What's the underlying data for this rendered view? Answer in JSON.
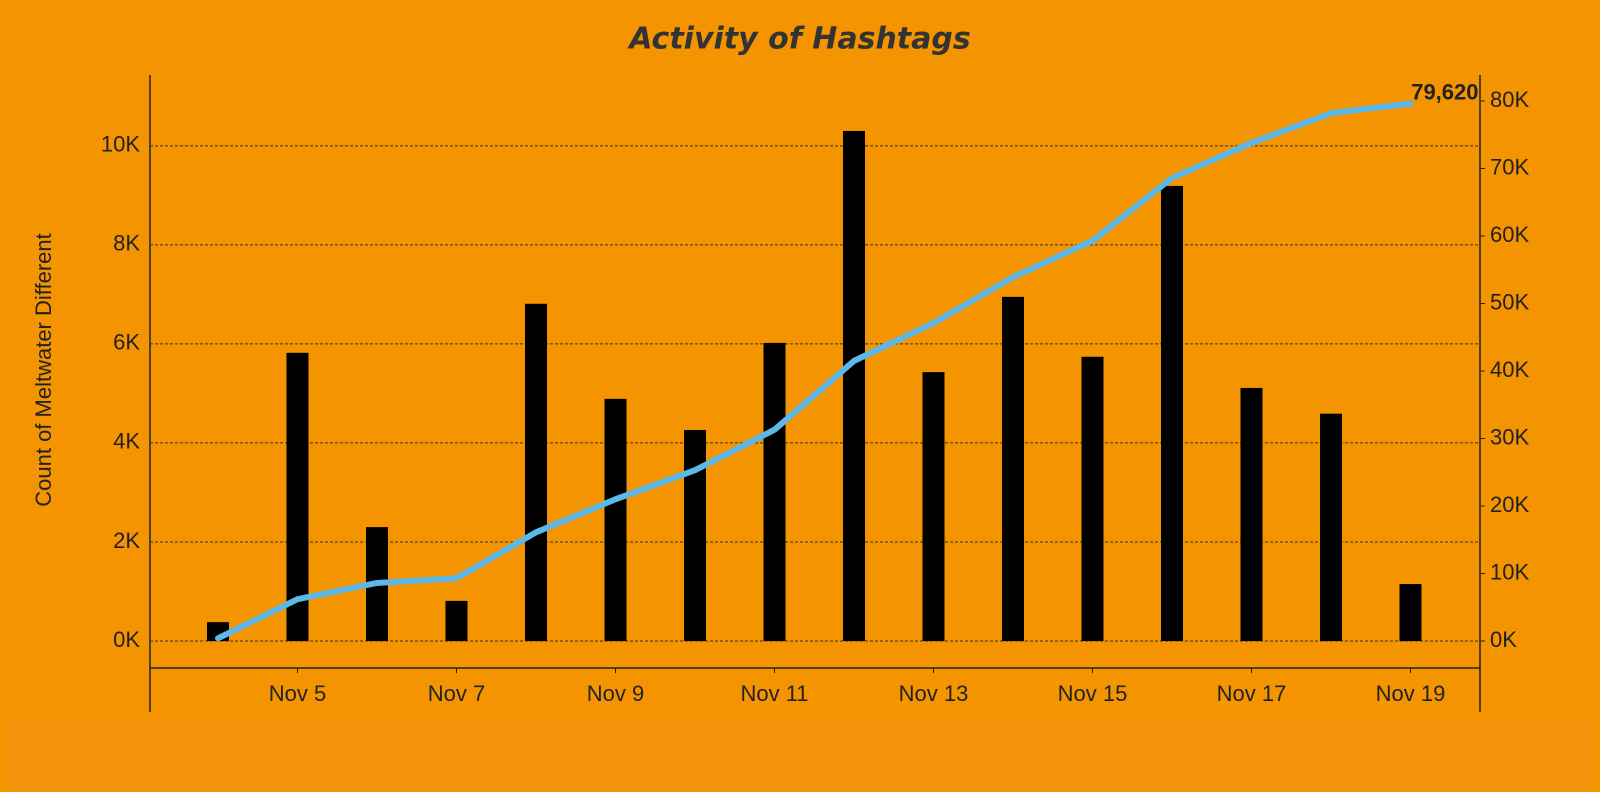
{
  "chart_data": {
    "type": "bar-line",
    "title": "Activity of Hashtags",
    "y_label": "Count of Meltwater Different",
    "categories": [
      null,
      "Nov 5",
      null,
      "Nov 7",
      null,
      "Nov 9",
      null,
      "Nov 11",
      null,
      "Nov 13",
      null,
      "Nov 15",
      null,
      "Nov 17",
      null,
      "Nov 19"
    ],
    "series": [
      {
        "type": "bar",
        "color": "#000000",
        "axis": "y",
        "values": [
          380,
          5820,
          2300,
          810,
          6810,
          4890,
          4260,
          6020,
          10300,
          5430,
          6950,
          5740,
          9190,
          5110,
          4590,
          1150
        ]
      },
      {
        "type": "line",
        "color": "#5bb8e8",
        "axis": "y2",
        "values": [
          400,
          6200,
          8600,
          9300,
          16100,
          21000,
          25300,
          31300,
          41500,
          47100,
          53900,
          59300,
          68600,
          73800,
          78200,
          79620
        ],
        "value_labels": [
          null,
          null,
          null,
          null,
          null,
          null,
          null,
          null,
          null,
          null,
          null,
          null,
          null,
          null,
          null,
          "79,620"
        ]
      }
    ],
    "ylim": [
      -545,
      11430
    ],
    "yticks": [
      {
        "value": 0,
        "label": "0K"
      },
      {
        "value": 2000,
        "label": "2K"
      },
      {
        "value": 4000,
        "label": "4K"
      },
      {
        "value": 6000,
        "label": "6K"
      },
      {
        "value": 8000,
        "label": "8K"
      },
      {
        "value": 10000,
        "label": "10K"
      }
    ],
    "y2lim": [
      -4000,
      83850
    ],
    "y2ticks": [
      {
        "value": 0,
        "label": "0K"
      },
      {
        "value": 10000,
        "label": "10K"
      },
      {
        "value": 20000,
        "label": "20K"
      },
      {
        "value": 30000,
        "label": "30K"
      },
      {
        "value": 40000,
        "label": "40K"
      },
      {
        "value": 50000,
        "label": "50K"
      },
      {
        "value": 60000,
        "label": "60K"
      },
      {
        "value": 70000,
        "label": "70K"
      },
      {
        "value": 80000,
        "label": "80K"
      }
    ],
    "grid": true
  }
}
